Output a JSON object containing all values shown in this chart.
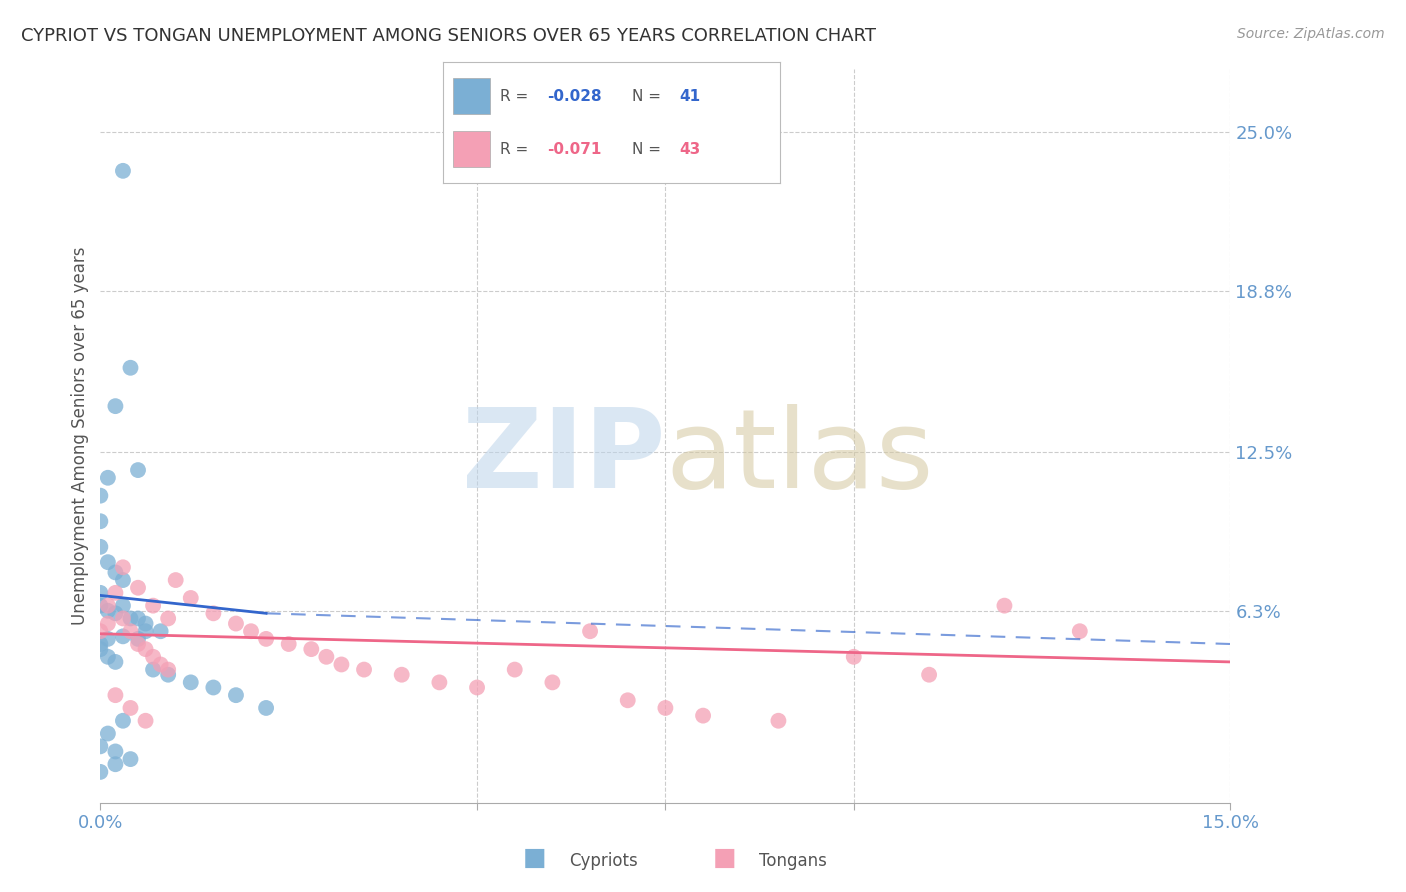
{
  "title": "CYPRIOT VS TONGAN UNEMPLOYMENT AMONG SENIORS OVER 65 YEARS CORRELATION CHART",
  "source": "Source: ZipAtlas.com",
  "ylabel": "Unemployment Among Seniors over 65 years",
  "ytick_labels": [
    "25.0%",
    "18.8%",
    "12.5%",
    "6.3%"
  ],
  "ytick_values": [
    0.25,
    0.188,
    0.125,
    0.063
  ],
  "xlim": [
    0.0,
    0.15
  ],
  "ylim": [
    -0.012,
    0.275
  ],
  "legend_R_cypriot": "-0.028",
  "legend_N_cypriot": "41",
  "legend_R_tongan": "-0.071",
  "legend_N_tongan": "43",
  "cypriot_color": "#7BAFD4",
  "tongan_color": "#F4A0B5",
  "trend_cypriot_color": "#3366CC",
  "trend_tongan_color": "#EE6688",
  "background_color": "#FFFFFF",
  "cypriot_x": [
    0.003,
    0.004,
    0.002,
    0.005,
    0.001,
    0.0,
    0.0,
    0.0,
    0.001,
    0.002,
    0.003,
    0.0,
    0.0,
    0.001,
    0.002,
    0.004,
    0.006,
    0.008,
    0.003,
    0.005,
    0.0,
    0.0,
    0.001,
    0.002,
    0.007,
    0.009,
    0.012,
    0.015,
    0.018,
    0.022,
    0.003,
    0.001,
    0.0,
    0.002,
    0.004,
    0.006,
    0.001,
    0.003,
    0.005,
    0.0,
    0.002
  ],
  "cypriot_y": [
    0.235,
    0.158,
    0.143,
    0.118,
    0.115,
    0.108,
    0.098,
    0.088,
    0.082,
    0.078,
    0.075,
    0.07,
    0.065,
    0.063,
    0.062,
    0.06,
    0.058,
    0.055,
    0.053,
    0.052,
    0.05,
    0.048,
    0.045,
    0.043,
    0.04,
    0.038,
    0.035,
    0.033,
    0.03,
    0.025,
    0.02,
    0.015,
    0.01,
    0.008,
    0.005,
    0.055,
    0.052,
    0.065,
    0.06,
    0.0,
    0.003
  ],
  "tongan_x": [
    0.0,
    0.001,
    0.002,
    0.003,
    0.004,
    0.005,
    0.006,
    0.007,
    0.008,
    0.009,
    0.01,
    0.012,
    0.015,
    0.018,
    0.02,
    0.022,
    0.025,
    0.028,
    0.03,
    0.032,
    0.035,
    0.04,
    0.045,
    0.05,
    0.055,
    0.06,
    0.065,
    0.07,
    0.075,
    0.08,
    0.09,
    0.1,
    0.11,
    0.12,
    0.13,
    0.003,
    0.005,
    0.007,
    0.009,
    0.001,
    0.002,
    0.004,
    0.006
  ],
  "tongan_y": [
    0.055,
    0.065,
    0.07,
    0.06,
    0.055,
    0.05,
    0.048,
    0.045,
    0.042,
    0.04,
    0.075,
    0.068,
    0.062,
    0.058,
    0.055,
    0.052,
    0.05,
    0.048,
    0.045,
    0.042,
    0.04,
    0.038,
    0.035,
    0.033,
    0.04,
    0.035,
    0.055,
    0.028,
    0.025,
    0.022,
    0.02,
    0.045,
    0.038,
    0.065,
    0.055,
    0.08,
    0.072,
    0.065,
    0.06,
    0.058,
    0.03,
    0.025,
    0.02
  ]
}
